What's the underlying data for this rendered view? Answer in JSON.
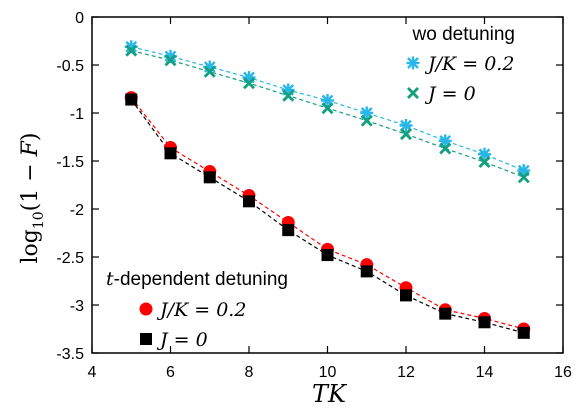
{
  "chart_data": {
    "type": "line",
    "xlabel": "TK",
    "ylabel": "log10(1 − F)",
    "xlim": [
      4,
      16
    ],
    "ylim": [
      -3.5,
      0
    ],
    "x_ticks": [
      "4",
      "6",
      "8",
      "10",
      "12",
      "14",
      "16"
    ],
    "y_ticks": [
      "0",
      "-0.5",
      "-1",
      "-1.5",
      "-2",
      "-2.5",
      "-3",
      "-3.5"
    ],
    "grid": false,
    "legends": [
      {
        "title": "wo detuning",
        "placement": "top-right",
        "entries": [
          "J/K = 0.2",
          "J = 0"
        ]
      },
      {
        "title": "t-dependent detuning",
        "placement": "bottom-left",
        "entries": [
          "J/K = 0.2",
          "J = 0"
        ]
      }
    ],
    "series": [
      {
        "name": "J/K = 0.2",
        "group": "wo detuning",
        "marker": "asterisk",
        "color": "#29b6e8",
        "x": [
          5,
          6,
          7,
          8,
          9,
          10,
          11,
          12,
          13,
          14,
          15
        ],
        "y": [
          -0.31,
          -0.41,
          -0.52,
          -0.63,
          -0.76,
          -0.87,
          -1.0,
          -1.13,
          -1.29,
          -1.43,
          -1.6
        ]
      },
      {
        "name": "J = 0",
        "group": "wo detuning",
        "marker": "x",
        "color": "#13a07f",
        "x": [
          5,
          6,
          7,
          8,
          9,
          10,
          11,
          12,
          13,
          14,
          15
        ],
        "y": [
          -0.35,
          -0.45,
          -0.57,
          -0.69,
          -0.82,
          -0.95,
          -1.08,
          -1.22,
          -1.37,
          -1.51,
          -1.67
        ]
      },
      {
        "name": "J/K = 0.2",
        "group": "t-dependent detuning",
        "marker": "circle",
        "color": "#ff0000",
        "x": [
          5,
          6,
          7,
          8,
          9,
          10,
          11,
          12,
          13,
          14,
          15
        ],
        "y": [
          -0.84,
          -1.36,
          -1.61,
          -1.86,
          -2.14,
          -2.42,
          -2.58,
          -2.82,
          -3.05,
          -3.14,
          -3.25
        ]
      },
      {
        "name": "J = 0",
        "group": "t-dependent detuning",
        "marker": "square",
        "color": "#000000",
        "x": [
          5,
          6,
          7,
          8,
          9,
          10,
          11,
          12,
          13,
          14,
          15
        ],
        "y": [
          -0.86,
          -1.42,
          -1.67,
          -1.92,
          -2.22,
          -2.48,
          -2.65,
          -2.9,
          -3.09,
          -3.18,
          -3.29
        ]
      }
    ]
  }
}
